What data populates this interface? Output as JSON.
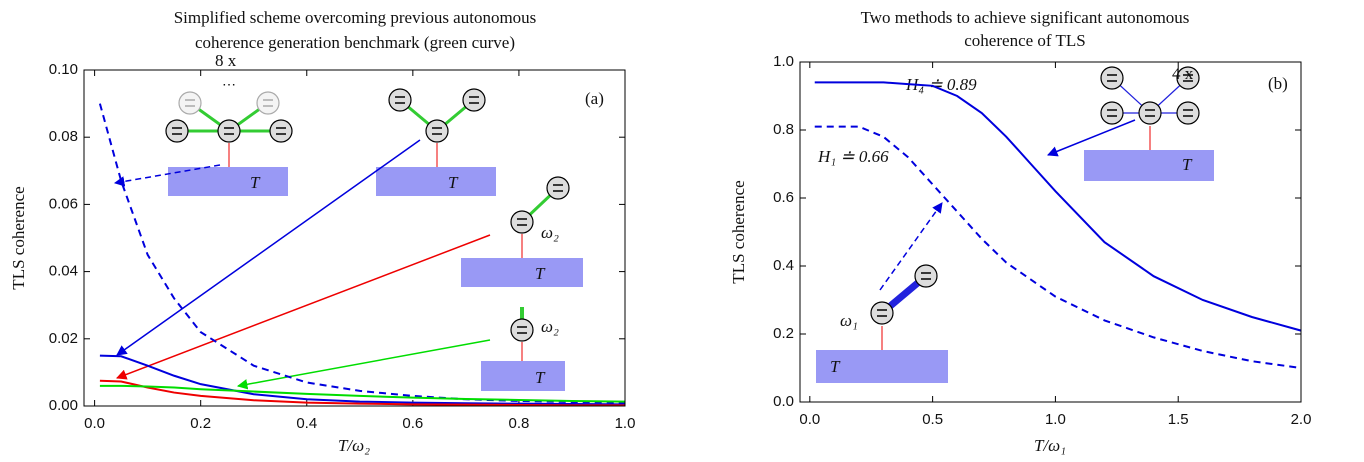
{
  "chart_data": [
    {
      "type": "line",
      "title": [
        "Simplified scheme overcoming previous autonomous",
        "coherence generation benchmark (green curve)"
      ],
      "xlabel": "T/ω₂",
      "ylabel": "TLS coherence",
      "annotations": [
        "(a)",
        "8 x",
        "T",
        "T",
        "T",
        "T",
        "ω₂",
        "ω₂"
      ],
      "x": [
        0.01,
        0.05,
        0.1,
        0.15,
        0.2,
        0.3,
        0.4,
        0.5,
        0.6,
        0.7,
        0.8,
        0.9,
        1.0
      ],
      "series": [
        {
          "color": "#0000dd",
          "dash": true,
          "values": [
            0.09,
            0.067,
            0.045,
            0.032,
            0.022,
            0.012,
            0.007,
            0.0045,
            0.003,
            0.002,
            0.0015,
            0.0012,
            0.001
          ]
        },
        {
          "color": "#0000dd",
          "dash": false,
          "values": [
            0.015,
            0.0148,
            0.012,
            0.009,
            0.0065,
            0.0035,
            0.002,
            0.0013,
            0.001,
            0.0008,
            0.0007,
            0.0006,
            0.0005
          ]
        },
        {
          "color": "#ee0000",
          "dash": false,
          "values": [
            0.0075,
            0.0073,
            0.0055,
            0.004,
            0.003,
            0.0017,
            0.001,
            0.0007,
            0.0005,
            0.0004,
            0.0003,
            0.0002,
            0.0002
          ]
        },
        {
          "color": "#00dd00",
          "dash": false,
          "values": [
            0.006,
            0.006,
            0.0058,
            0.0055,
            0.005,
            0.0043,
            0.0036,
            0.003,
            0.0025,
            0.0021,
            0.0018,
            0.0015,
            0.0013
          ]
        }
      ],
      "xlim": [
        -0.02,
        1.0
      ],
      "xticks": [
        {
          "value": 0,
          "label": "0.0"
        },
        0.2,
        0.4,
        0.6,
        0.8,
        {
          "value": 1,
          "label": "1.0"
        }
      ],
      "ylim": [
        0,
        0.1
      ],
      "yticks": [
        {
          "value": 0,
          "label": "0.00"
        },
        {
          "value": 0.02,
          "label": "0.02"
        },
        {
          "value": 0.04,
          "label": "0.04"
        },
        {
          "value": 0.06,
          "label": "0.06"
        },
        {
          "value": 0.08,
          "label": "0.08"
        },
        {
          "value": 0.1,
          "label": "0.10"
        }
      ]
    },
    {
      "type": "line",
      "title": [
        "Two methods to achieve significant autonomous",
        "coherence of TLS"
      ],
      "xlabel": "T/ω₁",
      "ylabel": "TLS coherence",
      "annotations": [
        "(b)",
        "H₄ ≐ 0.89",
        "H₁ ≐ 0.66",
        "4 x",
        "T",
        "T",
        "ω₁"
      ],
      "x": [
        0.02,
        0.2,
        0.3,
        0.4,
        0.5,
        0.6,
        0.7,
        0.8,
        0.9,
        1.0,
        1.2,
        1.4,
        1.6,
        1.8,
        2.0
      ],
      "series": [
        {
          "color": "#0000dd",
          "dash": false,
          "values": [
            0.94,
            0.94,
            0.94,
            0.935,
            0.93,
            0.9,
            0.85,
            0.78,
            0.7,
            0.62,
            0.47,
            0.37,
            0.3,
            0.25,
            0.21
          ]
        },
        {
          "color": "#0000dd",
          "dash": true,
          "values": [
            0.81,
            0.81,
            0.78,
            0.72,
            0.64,
            0.56,
            0.48,
            0.41,
            0.36,
            0.31,
            0.24,
            0.19,
            0.15,
            0.12,
            0.1
          ]
        }
      ],
      "xlim": [
        -0.04,
        2.0
      ],
      "xticks": [
        {
          "value": 0,
          "label": "0.0"
        },
        0.5,
        {
          "value": 1,
          "label": "1.0"
        },
        1.5,
        {
          "value": 2,
          "label": "2.0"
        }
      ],
      "ylim": [
        0,
        1.0
      ],
      "yticks": [
        {
          "value": 0,
          "label": "0.0"
        },
        0.2,
        0.4,
        0.6,
        0.8,
        {
          "value": 1,
          "label": "1.0"
        }
      ]
    }
  ]
}
